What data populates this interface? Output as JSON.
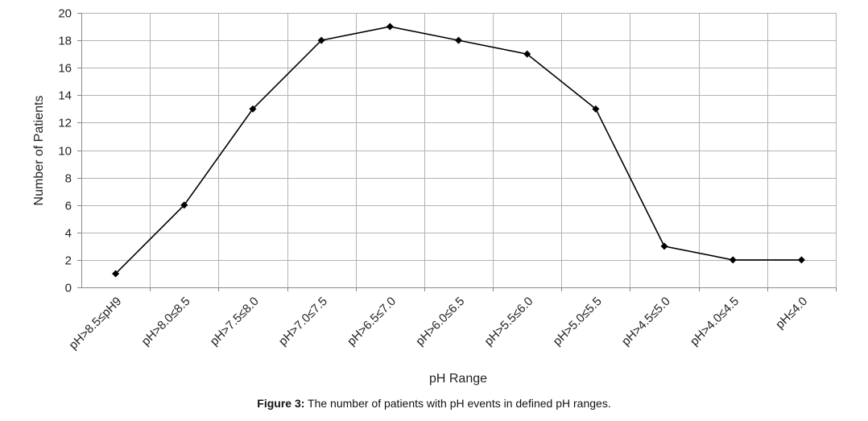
{
  "chart_data": {
    "type": "line",
    "categories": [
      "pH>8.5≤pH9",
      "pH>8.0≤8.5",
      "pH>7.5≤8.0",
      "pH>7.0≤7.5",
      "pH>6.5≤7.0",
      "pH>6.0≤6.5",
      "pH>5.5≤6.0",
      "pH>5.0≤5.5",
      "pH>4.5≤5.0",
      "pH>4.0≤4.5",
      "pH≤4.0"
    ],
    "series": [
      {
        "values": [
          1,
          6,
          13,
          18,
          19,
          18,
          17,
          13,
          3,
          2,
          2
        ],
        "color": "#000000",
        "marker": "diamond"
      }
    ],
    "xlabel": "pH Range",
    "ylabel": "Number of Patients",
    "ylim": [
      0,
      20
    ],
    "yticks": [
      0,
      2,
      4,
      6,
      8,
      10,
      12,
      14,
      16,
      18,
      20
    ],
    "grid": true,
    "legend": "none",
    "gridColor": "#b3b3b3"
  },
  "caption": {
    "label": "Figure 3:",
    "text": " The number of patients with pH events in defined pH ranges."
  }
}
